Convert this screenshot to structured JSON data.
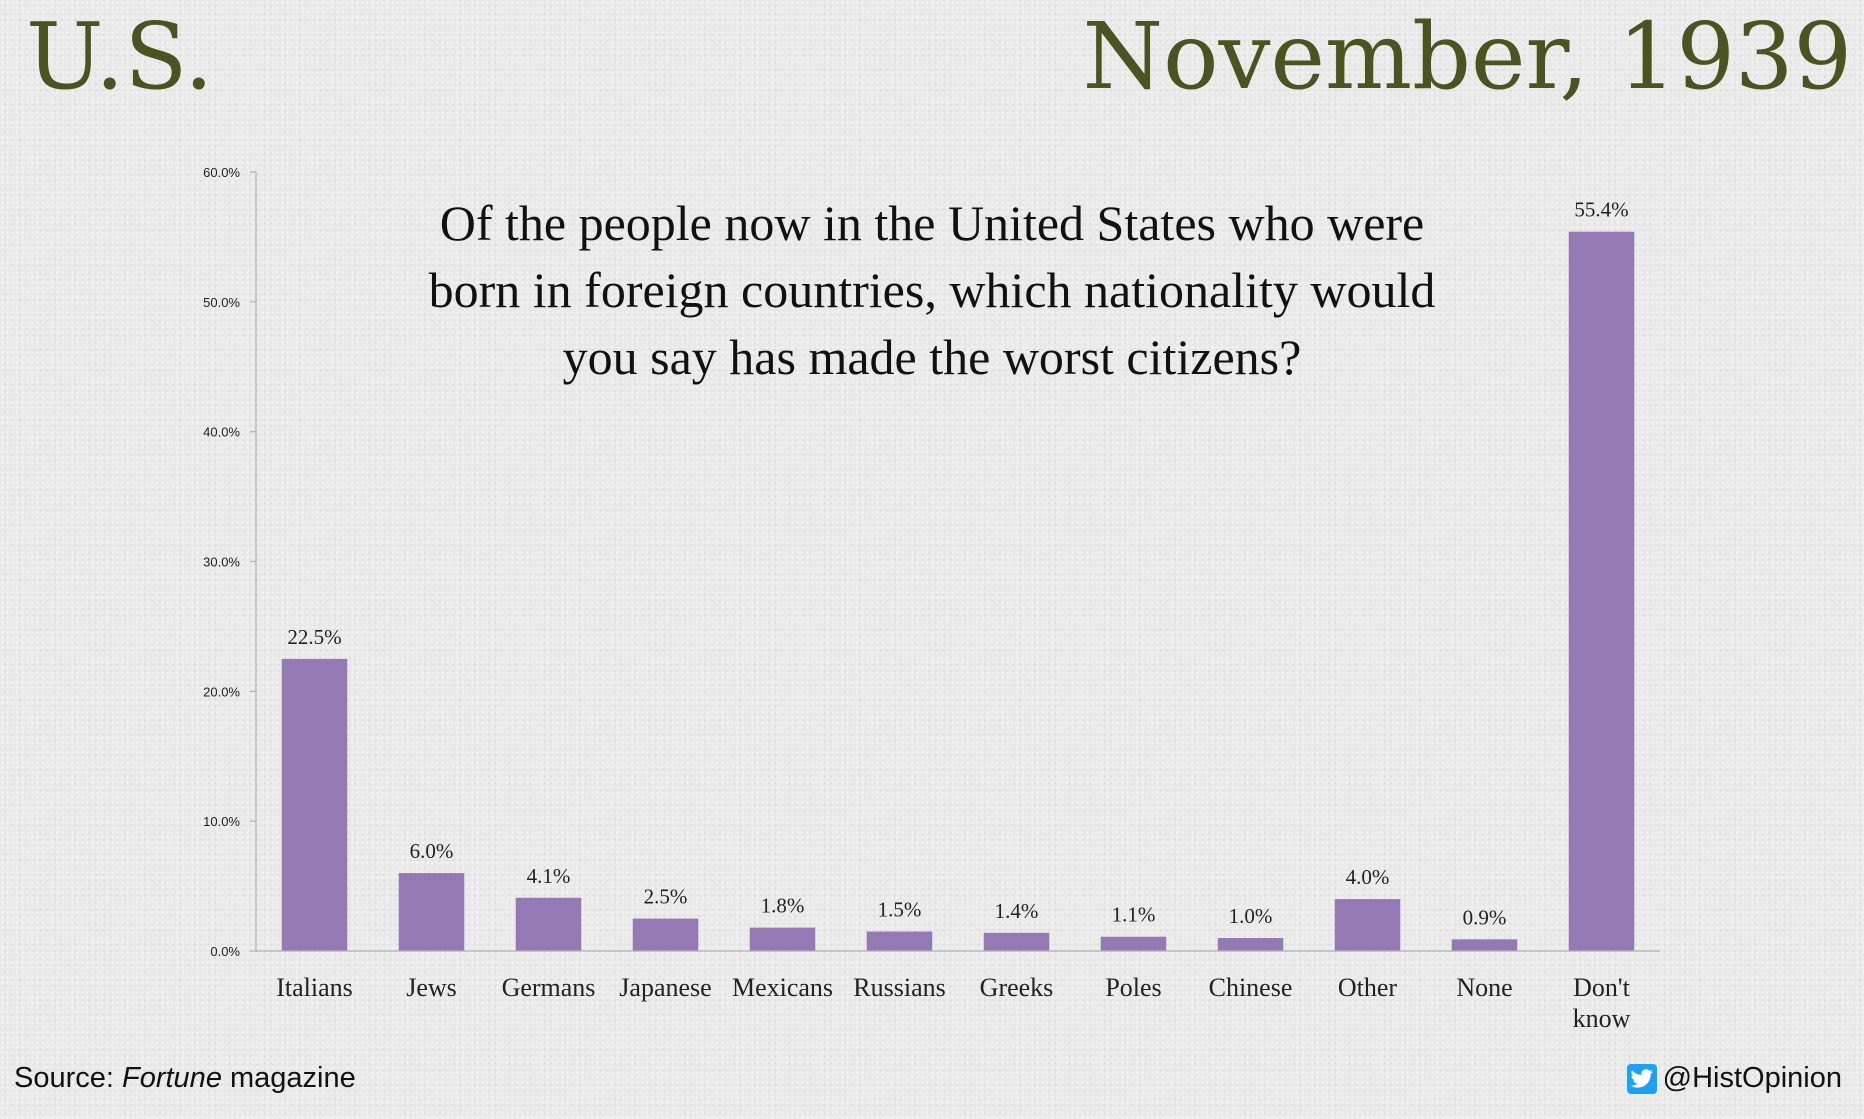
{
  "header": {
    "region": "U.S.",
    "date": "November, 1939"
  },
  "footer": {
    "source_prefix": "Source: ",
    "source_name": "Fortune",
    "source_suffix": " magazine",
    "handle": "@HistOpinion",
    "handle_icon": "twitter-bird-icon"
  },
  "chart_data": {
    "type": "bar",
    "title_lines": [
      "Of the people now in the United States who were",
      "born in foreign countries, which nationality would",
      "you say has made the worst citizens?"
    ],
    "categories": [
      [
        "Italians"
      ],
      [
        "Jews"
      ],
      [
        "Germans"
      ],
      [
        "Japanese"
      ],
      [
        "Mexicans"
      ],
      [
        "Russians"
      ],
      [
        "Greeks"
      ],
      [
        "Poles"
      ],
      [
        "Chinese"
      ],
      [
        "Other"
      ],
      [
        "None"
      ],
      [
        "Don't",
        "know"
      ]
    ],
    "values": [
      22.5,
      6.0,
      4.1,
      2.5,
      1.8,
      1.5,
      1.4,
      1.1,
      1.0,
      4.0,
      0.9,
      55.4
    ],
    "value_labels": [
      "22.5%",
      "6.0%",
      "4.1%",
      "2.5%",
      "1.8%",
      "1.5%",
      "1.4%",
      "1.1%",
      "1.0%",
      "4.0%",
      "0.9%",
      "55.4%"
    ],
    "y_ticks": [
      0,
      10,
      20,
      30,
      40,
      50,
      60
    ],
    "y_tick_labels": [
      "0.0%",
      "10.0%",
      "20.0%",
      "30.0%",
      "40.0%",
      "50.0%",
      "60.0%"
    ],
    "ylim": [
      0,
      60
    ],
    "grid": false,
    "legend": "none",
    "bar_color": "#9479b4",
    "text_color": "#222222"
  }
}
